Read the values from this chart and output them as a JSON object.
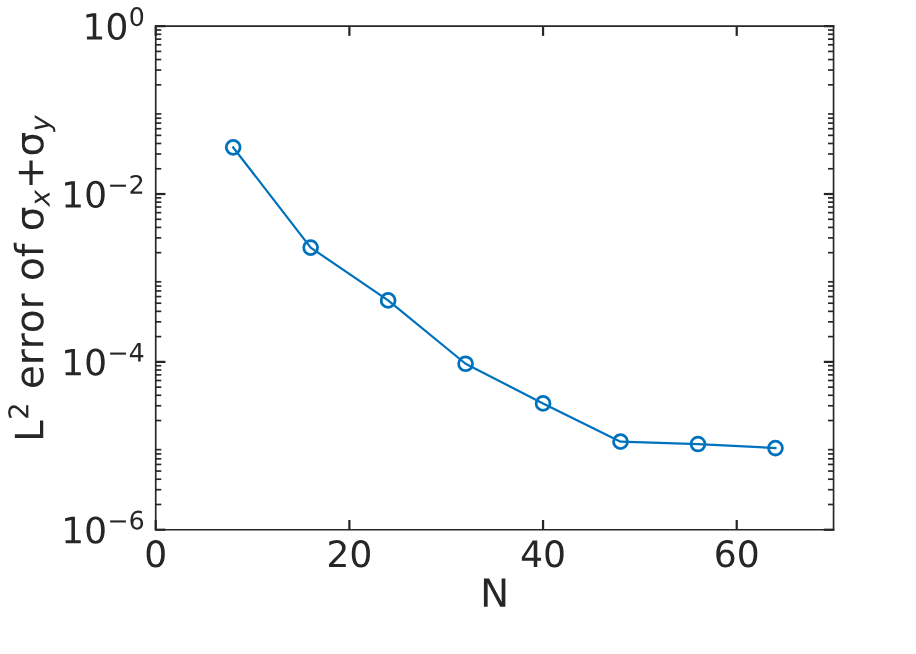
{
  "chart_data": {
    "type": "line",
    "xlabel": "N",
    "ylabel": "L$^{2}$ error of σ$_{x}$+σ$_{y}$",
    "x": [
      8,
      16,
      24,
      32,
      40,
      48,
      56,
      64
    ],
    "series": [
      {
        "color": "#0072bd",
        "values": [
          0.036,
          0.0023,
          0.00054,
          9.5e-05,
          3.2e-05,
          1.12e-05,
          1.05e-05,
          9.4e-06
        ]
      }
    ],
    "marker": "circle",
    "line_style": "solid",
    "log": "y",
    "grid": false,
    "legend": false,
    "xlim": [
      0,
      70
    ],
    "xticks": [
      0,
      20,
      40,
      60
    ],
    "ylim": [
      1e-06,
      1
    ],
    "yticks": [
      {
        "value": 1e-06,
        "label": "10$^{−6}$"
      },
      {
        "value": 0.0001,
        "label": "10$^{−4}$"
      },
      {
        "value": 0.01,
        "label": "10$^{−2}$"
      },
      {
        "value": 1,
        "label": "10$^{0}$"
      }
    ]
  }
}
